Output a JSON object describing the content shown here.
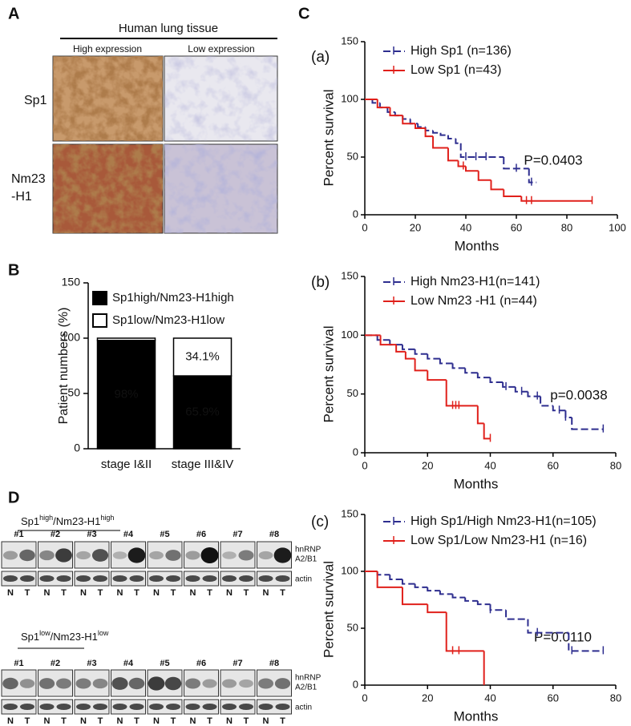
{
  "panel_labels": [
    "A",
    "B",
    "C",
    "D"
  ],
  "panel_a": {
    "title": "Human lung tissue",
    "columns": [
      "High expression",
      "Low expression"
    ],
    "rows": [
      {
        "lines": [
          "Sp1"
        ]
      },
      {
        "lines": [
          "Nm23",
          "-H1"
        ]
      }
    ]
  },
  "chart_data": [
    {
      "type": "bar",
      "stacked": true,
      "ylabel": "Patient numbers (%)",
      "categories": [
        "stage I&II",
        "stage III&IV"
      ],
      "series": [
        {
          "name": "Sp1high/Nm23-H1high",
          "color": "#000000",
          "values": [
            98,
            65.9
          ],
          "value_labels": [
            "98%",
            "65.9%"
          ]
        },
        {
          "name": "Sp1low/Nm23-H1low",
          "color": "#ffffff",
          "values": [
            2,
            34.1
          ],
          "value_labels": [
            null,
            "34.1%"
          ]
        }
      ],
      "ylim": [
        0,
        150
      ],
      "yticks": [
        0,
        50,
        100,
        150
      ]
    },
    {
      "type": "survival",
      "panel": "(a)",
      "xlabel": "Months",
      "ylabel": "Percent survival",
      "annotation": "P=0.0403",
      "series": [
        {
          "name": "High Sp1 (n=136)",
          "color": "#2e2e8f",
          "dashed": true,
          "x": [
            0,
            3,
            6,
            9,
            12,
            15,
            18,
            21,
            24,
            27,
            30,
            33,
            36,
            38,
            55,
            65,
            68
          ],
          "values": [
            100,
            97,
            93,
            89,
            86,
            83,
            79,
            76,
            73,
            71,
            69,
            66,
            62,
            50,
            40,
            28,
            28
          ],
          "censored": [
            40,
            44,
            48,
            60,
            66
          ]
        },
        {
          "name": "Low Sp1  (n=43)",
          "color": "#e0201b",
          "dashed": false,
          "x": [
            0,
            5,
            10,
            15,
            20,
            24,
            27,
            33,
            37,
            40,
            45,
            50,
            55,
            62,
            90
          ],
          "values": [
            100,
            93,
            86,
            79,
            75,
            68,
            58,
            47,
            42,
            38,
            30,
            22,
            16,
            12,
            12
          ],
          "censored": [
            39,
            64,
            66,
            90
          ]
        }
      ],
      "xlim": [
        0,
        100
      ],
      "xticks": [
        0,
        20,
        40,
        60,
        80,
        100
      ],
      "ylim": [
        0,
        150
      ],
      "yticks": [
        0,
        50,
        100,
        150
      ]
    },
    {
      "type": "survival",
      "panel": "(b)",
      "xlabel": "Months",
      "ylabel": "Percent survival",
      "annotation": "p=0.0038",
      "series": [
        {
          "name": "High Nm23-H1(n=141)",
          "color": "#2e2e8f",
          "dashed": true,
          "x": [
            0,
            4,
            8,
            12,
            16,
            20,
            24,
            28,
            32,
            36,
            40,
            44,
            48,
            52,
            56,
            60,
            64,
            66,
            76
          ],
          "values": [
            100,
            96,
            92,
            88,
            84,
            80,
            76,
            72,
            68,
            64,
            60,
            56,
            52,
            48,
            40,
            36,
            30,
            20,
            20
          ],
          "censored": [
            45,
            50,
            55,
            62,
            64,
            76
          ]
        },
        {
          "name": "Low Nm23 -H1 (n=44)",
          "color": "#e0201b",
          "dashed": false,
          "x": [
            0,
            5,
            10,
            13,
            16,
            20,
            26,
            36,
            38,
            40
          ],
          "values": [
            100,
            92,
            86,
            80,
            70,
            62,
            40,
            25,
            12,
            12
          ],
          "censored": [
            28,
            29,
            30,
            40
          ]
        }
      ],
      "xlim": [
        0,
        80
      ],
      "xticks": [
        0,
        20,
        40,
        60,
        80
      ],
      "ylim": [
        0,
        150
      ],
      "yticks": [
        0,
        50,
        100,
        150
      ]
    },
    {
      "type": "survival",
      "panel": "(c)",
      "xlabel": "Months",
      "ylabel": "Percent survival",
      "annotation": "P=0.0110",
      "series": [
        {
          "name": "High Sp1/High Nm23-H1(n=105)",
          "color": "#2e2e8f",
          "dashed": true,
          "x": [
            0,
            4,
            8,
            12,
            16,
            20,
            24,
            28,
            32,
            36,
            40,
            45,
            52,
            65,
            76
          ],
          "values": [
            100,
            97,
            93,
            89,
            86,
            83,
            80,
            77,
            74,
            71,
            66,
            58,
            46,
            30,
            30
          ],
          "censored": [
            40,
            55,
            66,
            76
          ]
        },
        {
          "name": "Low Sp1/Low Nm23-H1 (n=16)",
          "color": "#e0201b",
          "dashed": false,
          "x": [
            0,
            4,
            12,
            20,
            26,
            38
          ],
          "values": [
            100,
            86,
            71,
            64,
            30,
            0
          ],
          "censored": [
            28,
            30
          ]
        }
      ],
      "xlim": [
        0,
        80
      ],
      "xticks": [
        0,
        20,
        40,
        60,
        80
      ],
      "ylim": [
        0,
        150
      ],
      "yticks": [
        0,
        50,
        100,
        150
      ]
    }
  ],
  "panel_d": {
    "blots": [
      {
        "header": [
          "Sp1",
          "high",
          "/Nm23-H1",
          "high"
        ]
      },
      {
        "header": [
          "Sp1",
          "low",
          "/Nm23-H1",
          "low"
        ]
      }
    ],
    "samples": [
      "#1",
      "#2",
      "#3",
      "#4",
      "#5",
      "#6",
      "#7",
      "#8"
    ],
    "lanes": [
      "N",
      "T"
    ],
    "bands": [
      {
        "lines": [
          "hnRNP",
          "A2/B1"
        ]
      },
      {
        "lines": [
          "actin"
        ]
      }
    ]
  }
}
